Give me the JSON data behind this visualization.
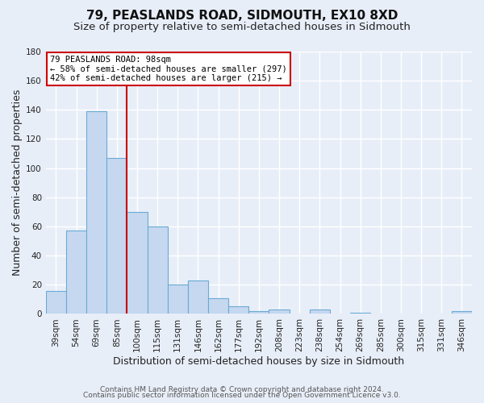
{
  "title1": "79, PEASLANDS ROAD, SIDMOUTH, EX10 8XD",
  "title2": "Size of property relative to semi-detached houses in Sidmouth",
  "xlabel": "Distribution of semi-detached houses by size in Sidmouth",
  "ylabel": "Number of semi-detached properties",
  "bin_labels": [
    "39sqm",
    "54sqm",
    "69sqm",
    "85sqm",
    "100sqm",
    "115sqm",
    "131sqm",
    "146sqm",
    "162sqm",
    "177sqm",
    "192sqm",
    "208sqm",
    "223sqm",
    "238sqm",
    "254sqm",
    "269sqm",
    "285sqm",
    "300sqm",
    "315sqm",
    "331sqm",
    "346sqm"
  ],
  "bar_heights": [
    16,
    57,
    139,
    107,
    70,
    60,
    20,
    23,
    11,
    5,
    2,
    3,
    0,
    3,
    0,
    1,
    0,
    0,
    0,
    0,
    2
  ],
  "bar_color": "#c5d8f0",
  "bar_edge_color": "#6aaad4",
  "property_sqm": 98,
  "annotation_title": "79 PEASLANDS ROAD: 98sqm",
  "annotation_line1": "← 58% of semi-detached houses are smaller (297)",
  "annotation_line2": "42% of semi-detached houses are larger (215) →",
  "annotation_box_color": "#ffffff",
  "annotation_box_edge": "#cc0000",
  "vline_color": "#cc0000",
  "ylim": [
    0,
    180
  ],
  "yticks": [
    0,
    20,
    40,
    60,
    80,
    100,
    120,
    140,
    160,
    180
  ],
  "footer1": "Contains HM Land Registry data © Crown copyright and database right 2024.",
  "footer2": "Contains public sector information licensed under the Open Government Licence v3.0.",
  "background_color": "#e8eef8",
  "grid_color": "#ffffff",
  "title_fontsize": 11,
  "subtitle_fontsize": 9.5,
  "axis_label_fontsize": 9,
  "tick_fontsize": 7.5,
  "footer_fontsize": 6.5
}
